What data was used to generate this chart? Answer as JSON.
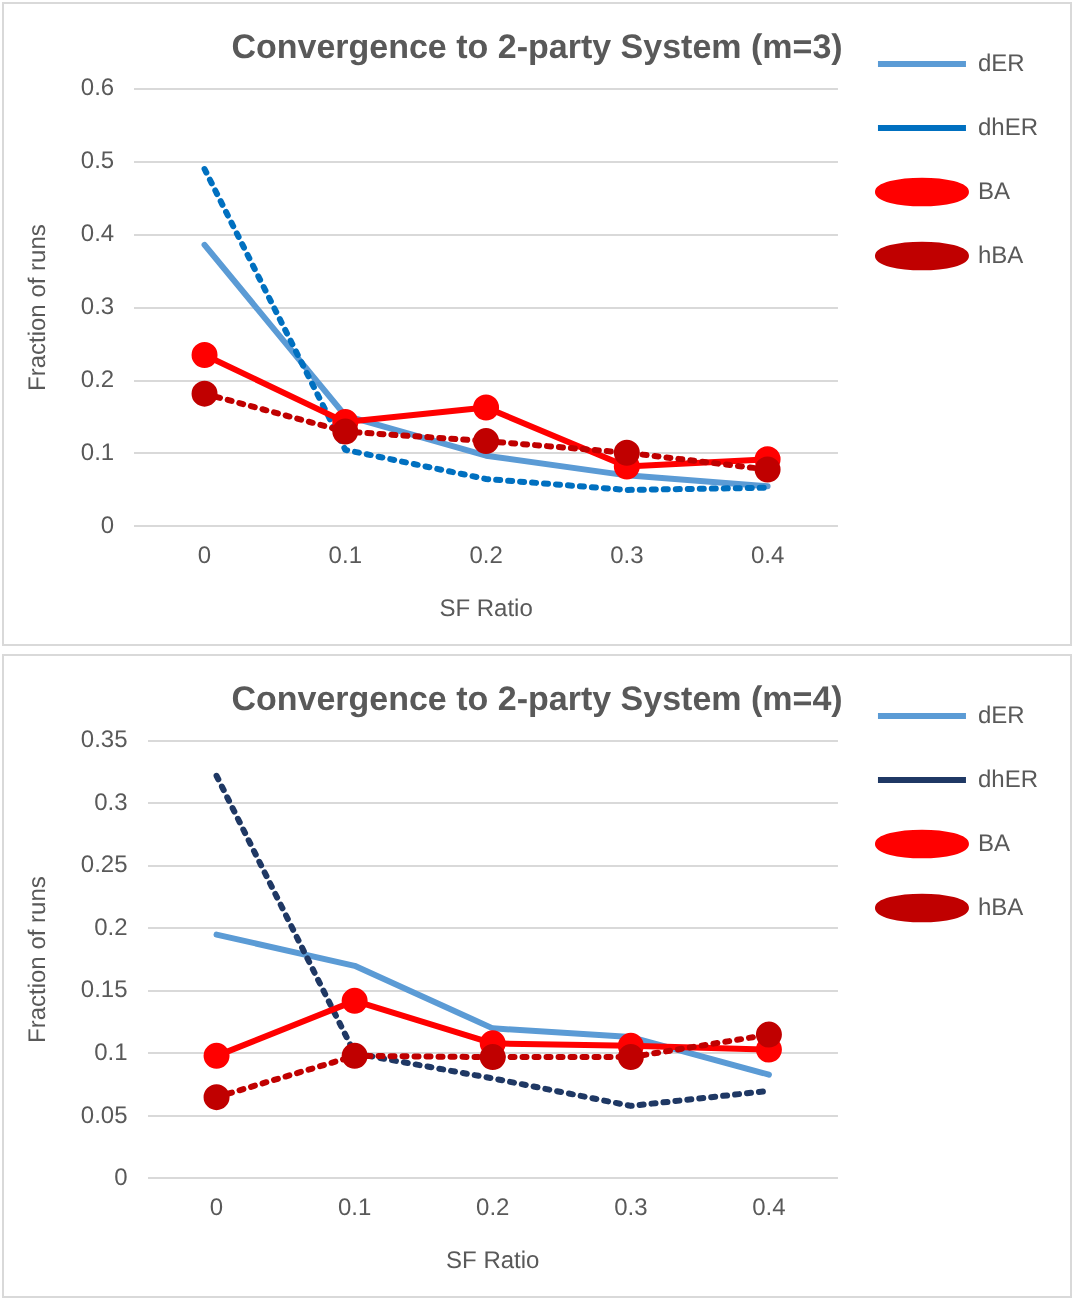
{
  "chart_data": [
    {
      "type": "line",
      "title": "Convergence to 2-party System (m=3)",
      "xlabel": "SF Ratio",
      "ylabel": "Fraction of runs",
      "categories": [
        "0",
        "0.1",
        "0.2",
        "0.3",
        "0.4"
      ],
      "ylim": [
        0,
        0.6
      ],
      "yticks": [
        0,
        0.1,
        0.2,
        0.3,
        0.4,
        0.5,
        0.6
      ],
      "grid": "y",
      "legend": "right",
      "series": [
        {
          "name": "dER",
          "color": "#5b9bd5",
          "line_style": "solid",
          "marker": "none",
          "values": [
            0.386,
            0.152,
            0.097,
            0.07,
            0.055
          ]
        },
        {
          "name": "dhER",
          "color": "#0070c0",
          "line_style": "dotted",
          "marker": "none",
          "values": [
            0.49,
            0.105,
            0.065,
            0.05,
            0.053
          ]
        },
        {
          "name": "BA",
          "color": "#ff0000",
          "line_style": "solid",
          "marker": "circle",
          "values": [
            0.235,
            0.143,
            0.163,
            0.082,
            0.092
          ]
        },
        {
          "name": "hBA",
          "color": "#c00000",
          "line_style": "dotted",
          "marker": "circle",
          "values": [
            0.182,
            0.13,
            0.117,
            0.101,
            0.078
          ]
        }
      ]
    },
    {
      "type": "line",
      "title": "Convergence to 2-party System (m=4)",
      "xlabel": "SF Ratio",
      "ylabel": "Fraction of runs",
      "categories": [
        "0",
        "0.1",
        "0.2",
        "0.3",
        "0.4"
      ],
      "ylim": [
        0,
        0.35
      ],
      "yticks": [
        0,
        0.05,
        0.1,
        0.15,
        0.2,
        0.25,
        0.3,
        0.35
      ],
      "grid": "y",
      "legend": "right",
      "series": [
        {
          "name": "dER",
          "color": "#5b9bd5",
          "line_style": "solid",
          "marker": "none",
          "values": [
            0.195,
            0.17,
            0.12,
            0.113,
            0.083
          ]
        },
        {
          "name": "dhER",
          "color": "#1f3864",
          "line_style": "dotted",
          "marker": "none",
          "values": [
            0.322,
            0.1,
            0.08,
            0.058,
            0.07
          ]
        },
        {
          "name": "BA",
          "color": "#ff0000",
          "line_style": "solid",
          "marker": "circle",
          "values": [
            0.098,
            0.142,
            0.108,
            0.106,
            0.103
          ]
        },
        {
          "name": "hBA",
          "color": "#c00000",
          "line_style": "dotted",
          "marker": "circle",
          "values": [
            0.065,
            0.098,
            0.097,
            0.097,
            0.115
          ]
        }
      ]
    }
  ]
}
